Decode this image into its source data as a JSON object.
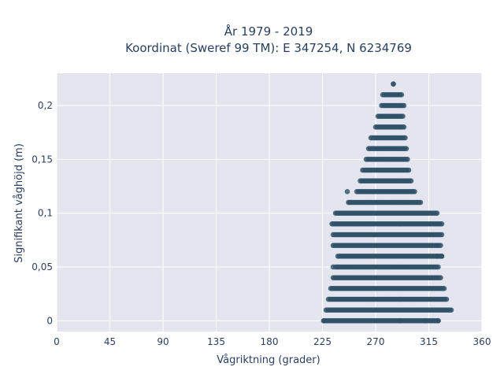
{
  "chart_data": {
    "type": "scatter",
    "title": "År 1979 - 2019",
    "subtitle": "Koordinat (Sweref 99 TM): E 347254, N 6234769",
    "xlabel": "Vågriktning (grader)",
    "ylabel": "Signifikant våghöjd (m)",
    "xlim": [
      0,
      360
    ],
    "ylim": [
      -0.01,
      0.23
    ],
    "x_ticks": [
      0,
      45,
      90,
      135,
      180,
      225,
      270,
      315,
      360
    ],
    "x_tick_labels": [
      "0",
      "45",
      "90",
      "135",
      "180",
      "225",
      "270",
      "315",
      "360"
    ],
    "y_ticks": [
      0,
      0.05,
      0.1,
      0.15,
      0.2
    ],
    "y_tick_labels": [
      "0",
      "0,05",
      "0,1",
      "0,15",
      "0,2"
    ],
    "grid": true,
    "marker_color": "#2f5168",
    "plot_bg": "#e5e5f0",
    "grid_color": "#ffffff",
    "text_color": "#2a3f5f",
    "rows": [
      {
        "y": 0.0,
        "x_min": 226,
        "x_max": 323
      },
      {
        "y": 0.01,
        "x_min": 228,
        "x_max": 334
      },
      {
        "y": 0.02,
        "x_min": 230,
        "x_max": 330
      },
      {
        "y": 0.03,
        "x_min": 232,
        "x_max": 328
      },
      {
        "y": 0.04,
        "x_min": 234,
        "x_max": 325
      },
      {
        "y": 0.05,
        "x_min": 236,
        "x_max": 323
      },
      {
        "y": 0.06,
        "x_min": 238,
        "x_max": 326
      },
      {
        "y": 0.07,
        "x_min": 234,
        "x_max": 325
      },
      {
        "y": 0.08,
        "x_min": 234,
        "x_max": 326
      },
      {
        "y": 0.09,
        "x_min": 233,
        "x_max": 326
      },
      {
        "y": 0.1,
        "x_min": 236,
        "x_max": 322
      },
      {
        "y": 0.11,
        "x_min": 247,
        "x_max": 308
      },
      {
        "y": 0.12,
        "x_min": 254,
        "x_max": 303
      },
      {
        "y": 0.13,
        "x_min": 257,
        "x_max": 300
      },
      {
        "y": 0.14,
        "x_min": 259,
        "x_max": 298
      },
      {
        "y": 0.15,
        "x_min": 262,
        "x_max": 297
      },
      {
        "y": 0.16,
        "x_min": 264,
        "x_max": 296
      },
      {
        "y": 0.17,
        "x_min": 266,
        "x_max": 295
      },
      {
        "y": 0.18,
        "x_min": 270,
        "x_max": 294
      },
      {
        "y": 0.19,
        "x_min": 272,
        "x_max": 293
      },
      {
        "y": 0.2,
        "x_min": 275,
        "x_max": 294
      },
      {
        "y": 0.21,
        "x_min": 276,
        "x_max": 292
      },
      {
        "y": 0.22,
        "x_min": 285,
        "x_max": 285
      }
    ],
    "outliers": [
      {
        "x": 226,
        "y": 0.0
      },
      {
        "x": 291,
        "y": 0.0
      },
      {
        "x": 312,
        "y": 0.0
      },
      {
        "x": 323,
        "y": 0.0
      },
      {
        "x": 234,
        "y": 0.05
      },
      {
        "x": 322,
        "y": 0.06
      },
      {
        "x": 326,
        "y": 0.06
      },
      {
        "x": 246,
        "y": 0.12
      }
    ]
  }
}
